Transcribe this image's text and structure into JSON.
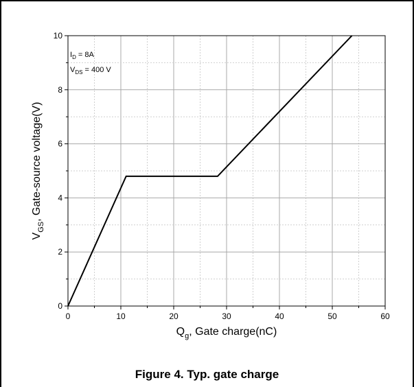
{
  "caption": "Figure 4. Typ. gate charge",
  "chart_data": {
    "type": "line",
    "title": "",
    "xlabel": {
      "main": "Q",
      "sub": "g",
      "rest": ", Gate charge(nC)"
    },
    "ylabel": {
      "main": "V",
      "sub": "GS",
      "rest": ", Gate-source voltage(V)"
    },
    "xlim": [
      0,
      60
    ],
    "ylim": [
      0,
      10
    ],
    "xticks": [
      0,
      10,
      20,
      30,
      40,
      50,
      60
    ],
    "yticks": [
      0,
      2,
      4,
      6,
      8,
      10
    ],
    "grid": true,
    "annotations": [
      {
        "main": "I",
        "sub": "D",
        "rest": " = 8A"
      },
      {
        "main": "V",
        "sub": "DS",
        "rest": " = 400 V"
      }
    ],
    "series": [
      {
        "x": [
          0,
          11,
          28.3,
          53.7
        ],
        "y": [
          0,
          4.8,
          4.8,
          10
        ],
        "color": "#000000"
      }
    ]
  }
}
